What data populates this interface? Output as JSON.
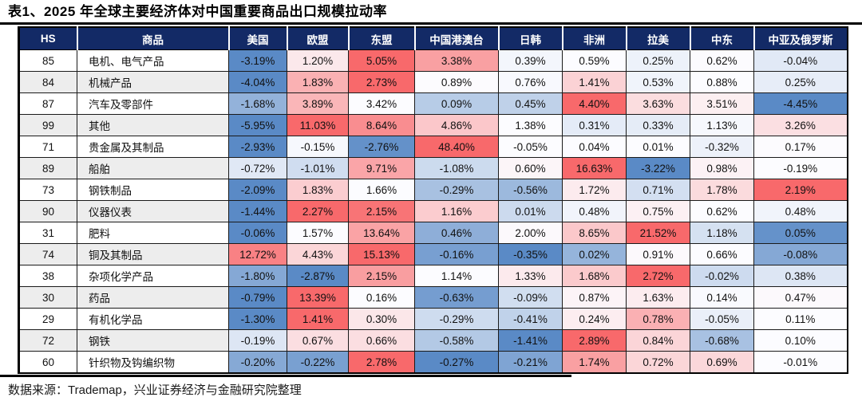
{
  "title": "表1、2025 年全球主要经济体对中国重要商品出口规模拉动率",
  "source_note": "数据来源：Trademap，兴业证券经济与金融研究院整理",
  "colors": {
    "header_bg": "#132A66",
    "header_text": "#FFFFFF",
    "scale_min_blue": "#5A8AC6",
    "scale_mid_white": "#FCFCFF",
    "scale_max_red": "#F8696B",
    "alt_row_bg": "#EDEDED",
    "rule_black": "#000000"
  },
  "chart_data": {
    "type": "heatmap",
    "title": "表1、2025 年全球主要经济体对中国重要商品出口规模拉动率",
    "value_format": "percent_2dp",
    "color_scale": {
      "description": "per-row 3-color scale: row min = blue, row median = white, row max = red",
      "min_color": "#5A8AC6",
      "mid_color": "#FCFCFF",
      "max_color": "#F8696B"
    },
    "columns": [
      "HS",
      "商品",
      "美国",
      "欧盟",
      "东盟",
      "中国港澳台",
      "日韩",
      "非洲",
      "拉美",
      "中东",
      "中亚及俄罗斯"
    ],
    "rows": [
      {
        "hs": "85",
        "name": "电机、电气产品",
        "values": [
          -3.19,
          1.2,
          5.05,
          3.38,
          0.39,
          0.59,
          0.25,
          0.62,
          -0.04
        ]
      },
      {
        "hs": "84",
        "name": "机械产品",
        "values": [
          -4.04,
          1.83,
          2.73,
          0.89,
          0.76,
          1.41,
          0.53,
          0.88,
          0.25
        ]
      },
      {
        "hs": "87",
        "name": "汽车及零部件",
        "values": [
          -1.68,
          3.89,
          3.42,
          0.09,
          0.45,
          4.4,
          3.63,
          3.51,
          -4.45
        ]
      },
      {
        "hs": "99",
        "name": "其他",
        "values": [
          -5.95,
          11.03,
          8.64,
          4.86,
          1.38,
          0.31,
          0.33,
          1.13,
          3.26
        ]
      },
      {
        "hs": "71",
        "name": "贵金属及其制品",
        "values": [
          -2.93,
          -0.15,
          -2.76,
          48.4,
          -0.05,
          0.04,
          0.01,
          -0.32,
          0.17
        ]
      },
      {
        "hs": "89",
        "name": "船舶",
        "values": [
          -0.72,
          -1.01,
          9.71,
          -1.08,
          0.6,
          16.63,
          -3.22,
          0.98,
          -0.19
        ]
      },
      {
        "hs": "73",
        "name": "钢铁制品",
        "values": [
          -2.09,
          1.83,
          1.66,
          -0.29,
          -0.56,
          1.72,
          0.71,
          1.78,
          2.19
        ]
      },
      {
        "hs": "90",
        "name": "仪器仪表",
        "values": [
          -1.44,
          2.27,
          2.15,
          1.16,
          0.01,
          0.48,
          0.75,
          0.62,
          0.48
        ]
      },
      {
        "hs": "31",
        "name": "肥料",
        "values": [
          -0.06,
          1.57,
          13.64,
          0.46,
          2.0,
          8.65,
          21.52,
          1.18,
          0.05
        ]
      },
      {
        "hs": "74",
        "name": "铜及其制品",
        "values": [
          12.72,
          4.43,
          15.13,
          -0.16,
          -0.35,
          0.02,
          0.91,
          0.66,
          -0.08
        ]
      },
      {
        "hs": "38",
        "name": "杂项化学产品",
        "values": [
          -1.8,
          -2.87,
          2.15,
          1.14,
          1.33,
          1.68,
          2.72,
          -0.02,
          0.38
        ]
      },
      {
        "hs": "30",
        "name": "药品",
        "values": [
          -0.79,
          13.39,
          0.16,
          -0.63,
          -0.09,
          0.87,
          1.63,
          0.14,
          0.47
        ]
      },
      {
        "hs": "29",
        "name": "有机化学品",
        "values": [
          -1.3,
          1.41,
          0.3,
          -0.29,
          -0.41,
          0.24,
          0.78,
          -0.05,
          0.11
        ]
      },
      {
        "hs": "72",
        "name": "钢铁",
        "values": [
          -0.19,
          0.67,
          0.66,
          -0.58,
          -1.41,
          2.89,
          0.84,
          -0.68,
          0.1
        ]
      },
      {
        "hs": "60",
        "name": "针织物及钩编织物",
        "values": [
          -0.2,
          -0.22,
          2.78,
          -0.27,
          -0.21,
          1.74,
          0.72,
          0.69,
          -0.01
        ]
      }
    ]
  }
}
